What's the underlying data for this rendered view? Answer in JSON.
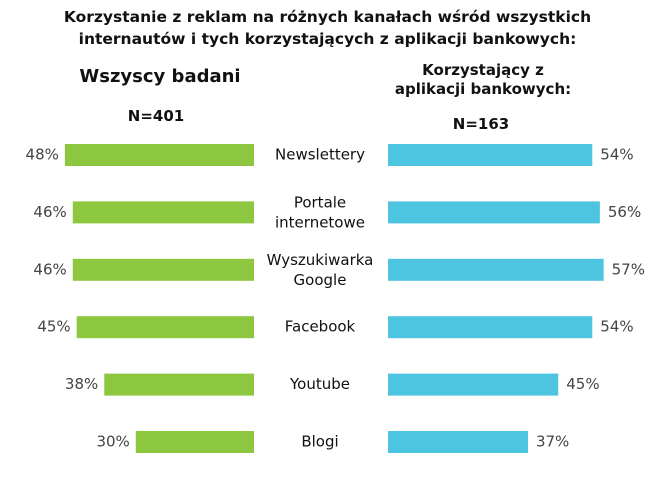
{
  "chart_data": {
    "type": "butterfly-bar",
    "title": "Korzystanie z reklam na różnych kanałach wśród wszystkich  internautów i tych korzystających z aplikacji bankowych:",
    "categories": [
      "Newslettery",
      "Portale\ninternetowe",
      "Wyszukiwarka\nGoogle",
      "Facebook",
      "Youtube",
      "Blogi"
    ],
    "series": [
      {
        "name": "Wszyscy badani",
        "n_label": "N=401",
        "color": "#8dc63f",
        "side": "left",
        "values": [
          48,
          46,
          46,
          45,
          38,
          30
        ],
        "value_labels": [
          "48%",
          "46%",
          "46%",
          "45%",
          "38%",
          "30%"
        ],
        "xlim": [
          0,
          50
        ]
      },
      {
        "name": "Korzystający z aplikacji bankowych:",
        "n_label": "N=163",
        "color": "#4dc4e0",
        "side": "right",
        "values": [
          54,
          56,
          57,
          54,
          45,
          37
        ],
        "value_labels": [
          "54%",
          "56%",
          "57%",
          "54%",
          "45%",
          "37%"
        ],
        "xlim": [
          0,
          60
        ]
      }
    ]
  }
}
